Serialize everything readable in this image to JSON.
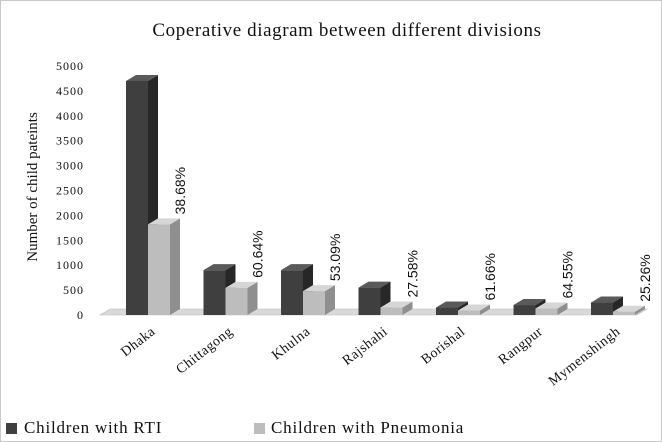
{
  "chart_data": {
    "type": "bar",
    "title": "Coperative diagram between different divisions",
    "ylabel": "Number of child pateints",
    "xlabel": "",
    "ylim": [
      0,
      5000
    ],
    "yticks": [
      "0",
      "500",
      "1000",
      "1500",
      "2000",
      "2500",
      "3000",
      "3500",
      "4000",
      "4500",
      "5000"
    ],
    "categories": [
      "Dhaka",
      "Chittagong",
      "Khulna",
      "Rajshahi",
      "Borishal",
      "Rangpur",
      "Mymenshingh"
    ],
    "series": [
      {
        "name": "Children with RTI",
        "values": [
          4700,
          900,
          900,
          550,
          150,
          200,
          250
        ]
      },
      {
        "name": "Children with Pneumonia",
        "values": [
          1820,
          545,
          480,
          150,
          90,
          130,
          65
        ]
      }
    ],
    "data_labels": [
      "38.68%",
      "60.64%",
      "53.09%",
      "27.58%",
      "61.66%",
      "64.55%",
      "25.26%"
    ],
    "legend_position": "bottom-left",
    "grid": false,
    "colors": {
      "rti_front": "#3f3f3f",
      "rti_side": "#272727",
      "rti_top": "#5a5a5a",
      "pneumonia_front": "#bdbdbd",
      "pneumonia_side": "#8f8f8f",
      "pneumonia_top": "#d6d6d6",
      "floor": "#d9d9d9"
    }
  }
}
